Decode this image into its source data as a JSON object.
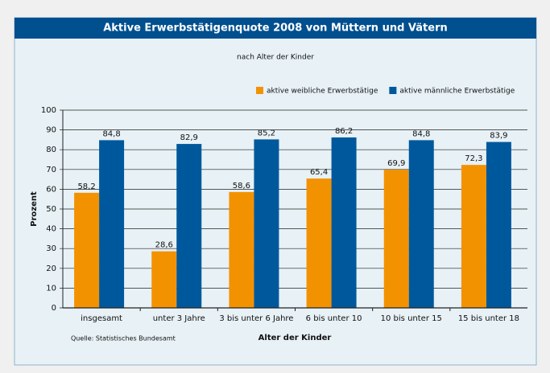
{
  "chart_data": {
    "type": "bar",
    "title": "Aktive Erwerbstätigenquote 2008 von Müttern und Vätern",
    "subtitle": "nach Alter der Kinder",
    "x_label": "Alter der Kinder",
    "y_label": "Prozent",
    "source": "Quelle: Statistisches Bundesamt",
    "categories": [
      "insgesamt",
      "unter 3 Jahre",
      "3 bis unter 6 Jahre",
      "6 bis unter 10",
      "10 bis unter 15",
      "15 bis unter 18"
    ],
    "series": [
      {
        "name": "aktive weibliche Erwerbstätige",
        "color": "#f39200",
        "values": [
          58.2,
          28.6,
          58.6,
          65.4,
          69.9,
          72.3
        ],
        "value_labels": [
          "58,2",
          "28,6",
          "58,6",
          "65,4",
          "69,9",
          "72,3"
        ]
      },
      {
        "name": "aktive männliche Erwerbstätige",
        "color": "#00589c",
        "values": [
          84.8,
          82.9,
          85.2,
          86.2,
          84.8,
          83.9
        ],
        "value_labels": [
          "84,8",
          "82,9",
          "85,2",
          "86,2",
          "84,8",
          "83,9"
        ]
      }
    ],
    "ylim": [
      0,
      100
    ],
    "yticks": [
      0,
      10,
      20,
      30,
      40,
      50,
      60,
      70,
      80,
      90,
      100
    ],
    "grid": true,
    "legend": "top-right"
  }
}
